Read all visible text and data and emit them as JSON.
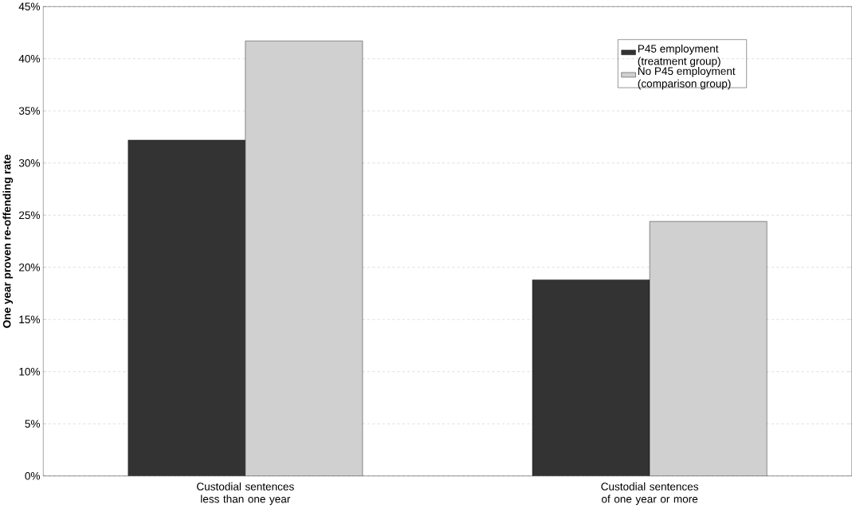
{
  "chart_data": {
    "type": "bar",
    "ylabel": "One year proven re-offending rate",
    "categories": [
      "Custodial sentences less than one year",
      "Custodial sentences of one year or more"
    ],
    "series": [
      {
        "name": "P45 employment (treatment group)",
        "color": "#333333",
        "values": [
          32.2,
          18.8
        ]
      },
      {
        "name": "No P45 employment (comparison group)",
        "color": "#d0d0d0",
        "values": [
          41.7,
          24.4
        ]
      }
    ],
    "ylim": [
      0,
      45
    ],
    "yticks": [
      {
        "value": 0,
        "label": "0%"
      },
      {
        "value": 5,
        "label": "5%"
      },
      {
        "value": 10,
        "label": "10%"
      },
      {
        "value": 15,
        "label": "15%"
      },
      {
        "value": 20,
        "label": "20%"
      },
      {
        "value": 25,
        "label": "25%"
      },
      {
        "value": 30,
        "label": "30%"
      },
      {
        "value": 35,
        "label": "35%"
      },
      {
        "value": 40,
        "label": "40%"
      },
      {
        "value": 45,
        "label": "45%"
      }
    ],
    "grid": "y",
    "legend": "top right"
  }
}
